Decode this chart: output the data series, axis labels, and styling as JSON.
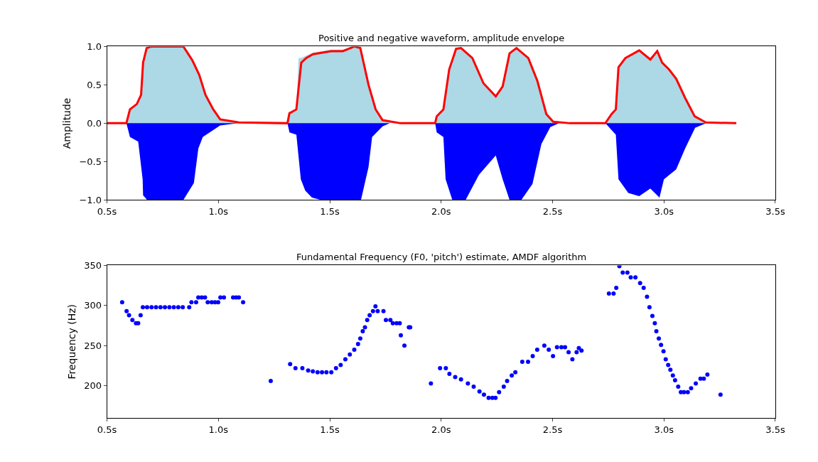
{
  "chart_data": [
    {
      "type": "area",
      "title": "Positive and negative waveform, amplitude envelope",
      "ylabel": "Amplitude",
      "xlim": [
        0.5,
        3.5
      ],
      "ylim": [
        -1,
        1
      ],
      "xticks": [
        {
          "value": 0.5,
          "label": "0.5s"
        },
        {
          "value": 1.0,
          "label": "1.0s"
        },
        {
          "value": 1.5,
          "label": "1.5s"
        },
        {
          "value": 2.0,
          "label": "2.0s"
        },
        {
          "value": 2.5,
          "label": "2.5s"
        },
        {
          "value": 3.0,
          "label": "3.0s"
        },
        {
          "value": 3.5,
          "label": "3.5s"
        }
      ],
      "yticks": [
        {
          "value": -1,
          "label": "−1.0"
        },
        {
          "value": -0.5,
          "label": "−0.5"
        },
        {
          "value": 0,
          "label": "0.0"
        },
        {
          "value": 0.5,
          "label": "0.5"
        },
        {
          "value": 1,
          "label": "1.0"
        }
      ],
      "grid": false,
      "series": [
        {
          "color": "#add8e6",
          "x": [
            0.587,
            0.603,
            0.634,
            0.653,
            0.662,
            0.678,
            0.7,
            0.75,
            0.8,
            0.843,
            0.883,
            0.914,
            0.942,
            0.977,
            1.008,
            1.092,
            1.31,
            1.319,
            1.35,
            1.36,
            1.372,
            1.394,
            1.425,
            1.506,
            1.559,
            1.61,
            1.637,
            1.674,
            1.706,
            1.737,
            1.818,
            1.973,
            1.98,
            2.01,
            2.036,
            2.067,
            2.089,
            2.14,
            2.19,
            2.245,
            2.276,
            2.307,
            2.338,
            2.391,
            2.432,
            2.472,
            2.503,
            2.578,
            2.737,
            2.765,
            2.784,
            2.796,
            2.827,
            2.889,
            2.939,
            2.97,
            2.992,
            3.023,
            3.055,
            3.095,
            3.138,
            3.188
          ],
          "values": [
            0,
            0.18,
            0.25,
            0.37,
            0.79,
            0.98,
            1.0,
            1.0,
            1.0,
            1.0,
            0.82,
            0.63,
            0.37,
            0.18,
            0.05,
            0.01,
            0,
            0.13,
            0.18,
            0.85,
            0.85,
            0.88,
            0.92,
            0.96,
            0.96,
            1.0,
            1.0,
            0.5,
            0.18,
            0.04,
            0,
            0,
            0.09,
            0.18,
            0.7,
            0.97,
            0.98,
            0.85,
            0.52,
            0.35,
            0.48,
            0.91,
            0.98,
            0.85,
            0.55,
            0.12,
            0.02,
            0,
            0,
            0.12,
            0.18,
            0.73,
            0.85,
            0.95,
            0.83,
            0.94,
            0.79,
            0.7,
            0.58,
            0.33,
            0.09,
            0
          ]
        },
        {
          "color": "#0000ff",
          "x": [
            0.587,
            0.603,
            0.64,
            0.66,
            0.662,
            0.68,
            0.843,
            0.89,
            0.91,
            0.93,
            1.008,
            1.09,
            1.31,
            1.319,
            1.35,
            1.37,
            1.39,
            1.42,
            1.46,
            1.64,
            1.674,
            1.69,
            1.737,
            1.77,
            1.973,
            1.98,
            2.01,
            2.02,
            2.05,
            2.11,
            2.17,
            2.245,
            2.276,
            2.307,
            2.36,
            2.41,
            2.45,
            2.49,
            2.53,
            2.737,
            2.765,
            2.784,
            2.796,
            2.84,
            2.889,
            2.939,
            2.98,
            3.0,
            3.055,
            3.095,
            3.14,
            3.19
          ],
          "values": [
            0,
            -0.18,
            -0.24,
            -0.73,
            -0.94,
            -1.0,
            -1.0,
            -0.78,
            -0.33,
            -0.18,
            -0.03,
            0,
            0,
            -0.12,
            -0.15,
            -0.73,
            -0.88,
            -0.97,
            -1.0,
            -1.0,
            -0.57,
            -0.18,
            -0.04,
            0,
            0,
            -0.12,
            -0.18,
            -0.73,
            -1.0,
            -1.0,
            -0.67,
            -0.42,
            -0.73,
            -1.0,
            -1.0,
            -0.79,
            -0.27,
            -0.05,
            0,
            0,
            -0.09,
            -0.15,
            -0.73,
            -0.91,
            -0.95,
            -0.85,
            -0.97,
            -0.73,
            -0.6,
            -0.33,
            -0.06,
            0
          ]
        },
        {
          "type": "line",
          "color": "#ff0000",
          "x": [
            0.5,
            0.587,
            0.603,
            0.634,
            0.653,
            0.662,
            0.678,
            0.7,
            0.75,
            0.8,
            0.843,
            0.883,
            0.914,
            0.942,
            0.977,
            1.008,
            1.092,
            1.31,
            1.319,
            1.35,
            1.372,
            1.394,
            1.425,
            1.506,
            1.559,
            1.61,
            1.637,
            1.674,
            1.706,
            1.737,
            1.818,
            1.973,
            1.98,
            2.01,
            2.036,
            2.067,
            2.089,
            2.14,
            2.19,
            2.245,
            2.276,
            2.307,
            2.338,
            2.391,
            2.432,
            2.472,
            2.503,
            2.578,
            2.737,
            2.765,
            2.784,
            2.796,
            2.827,
            2.889,
            2.939,
            2.97,
            2.992,
            3.023,
            3.055,
            3.095,
            3.138,
            3.188,
            3.325
          ],
          "values": [
            0,
            0,
            0.18,
            0.25,
            0.37,
            0.79,
            0.98,
            1.0,
            1.0,
            1.0,
            1.0,
            0.82,
            0.63,
            0.37,
            0.18,
            0.05,
            0.01,
            0,
            0.13,
            0.18,
            0.79,
            0.85,
            0.9,
            0.94,
            0.94,
            1.0,
            0.98,
            0.5,
            0.18,
            0.04,
            0,
            0,
            0.09,
            0.18,
            0.7,
            0.97,
            0.98,
            0.85,
            0.52,
            0.35,
            0.48,
            0.91,
            0.98,
            0.85,
            0.55,
            0.12,
            0.02,
            0,
            0,
            0.12,
            0.18,
            0.73,
            0.85,
            0.95,
            0.83,
            0.94,
            0.79,
            0.7,
            0.58,
            0.33,
            0.09,
            0.01,
            0
          ]
        }
      ]
    },
    {
      "type": "scatter",
      "title": "Fundamental Frequency (F0, 'pitch') estimate, AMDF algorithm",
      "ylabel": "Frequency (Hz)",
      "xlim": [
        0.5,
        3.5
      ],
      "ylim": [
        160,
        350
      ],
      "xticks": [
        {
          "value": 0.5,
          "label": "0.5s"
        },
        {
          "value": 1.0,
          "label": "1.0s"
        },
        {
          "value": 1.5,
          "label": "1.5s"
        },
        {
          "value": 2.0,
          "label": "2.0s"
        },
        {
          "value": 2.5,
          "label": "2.5s"
        },
        {
          "value": 3.0,
          "label": "3.0s"
        },
        {
          "value": 3.5,
          "label": "3.5s"
        }
      ],
      "yticks": [
        200,
        250,
        300,
        350
      ],
      "grid": false,
      "marker": "circle",
      "series": [
        {
          "color": "#0000ff",
          "x": [
            0.568,
            0.588,
            0.599,
            0.614,
            0.63,
            0.64,
            0.651,
            0.661,
            0.68,
            0.7,
            0.72,
            0.74,
            0.76,
            0.78,
            0.8,
            0.82,
            0.84,
            0.869,
            0.879,
            0.9,
            0.91,
            0.925,
            0.94,
            0.952,
            0.97,
            0.985,
            0.999,
            1.009,
            1.025,
            1.066,
            1.08,
            1.092,
            1.111,
            1.235,
            1.322,
            1.346,
            1.377,
            1.403,
            1.424,
            1.445,
            1.465,
            1.485,
            1.507,
            1.528,
            1.549,
            1.57,
            1.59,
            1.61,
            1.627,
            1.637,
            1.648,
            1.658,
            1.668,
            1.679,
            1.694,
            1.705,
            1.715,
            1.741,
            1.752,
            1.772,
            1.783,
            1.8,
            1.814,
            1.819,
            1.835,
            1.855,
            1.861,
            1.954,
            1.995,
            2.021,
            2.037,
            2.063,
            2.089,
            2.12,
            2.146,
            2.172,
            2.192,
            2.213,
            2.23,
            2.244,
            2.26,
            2.281,
            2.296,
            2.317,
            2.333,
            2.364,
            2.39,
            2.411,
            2.431,
            2.463,
            2.483,
            2.502,
            2.52,
            2.54,
            2.556,
            2.572,
            2.589,
            2.608,
            2.618,
            2.63,
            2.753,
            2.774,
            2.786,
            2.8,
            2.815,
            2.836,
            2.851,
            2.872,
            2.893,
            2.909,
            2.924,
            2.935,
            2.948,
            2.959,
            2.966,
            2.977,
            2.987,
            2.998,
            3.008,
            3.019,
            3.029,
            3.04,
            3.05,
            3.064,
            3.076,
            3.09,
            3.107,
            3.122,
            3.143,
            3.164,
            3.179,
            3.195,
            3.254
          ],
          "values": [
            304,
            293,
            288,
            282,
            278,
            278,
            288,
            298,
            298,
            298,
            298,
            298,
            298,
            298,
            298,
            298,
            298,
            298,
            304,
            304,
            310,
            310,
            310,
            304,
            304,
            304,
            304,
            310,
            310,
            310,
            310,
            310,
            304,
            206,
            227,
            222,
            222,
            219,
            218,
            217,
            217,
            217,
            217,
            222,
            226,
            233,
            239,
            245,
            252,
            259,
            268,
            273,
            282,
            288,
            293,
            299,
            293,
            293,
            282,
            282,
            278,
            278,
            278,
            263,
            250,
            273,
            273,
            203,
            222,
            222,
            215,
            211,
            208,
            203,
            199,
            193,
            189,
            185,
            185,
            185,
            192,
            199,
            206,
            213,
            217,
            230,
            230,
            237,
            245,
            250,
            245,
            237,
            248,
            248,
            248,
            242,
            233,
            242,
            247,
            244,
            315,
            315,
            322,
            349,
            341,
            341,
            335,
            335,
            328,
            322,
            311,
            298,
            287,
            278,
            268,
            259,
            251,
            243,
            233,
            226,
            220,
            213,
            207,
            199,
            192,
            192,
            192,
            197,
            203,
            209,
            209,
            214,
            189
          ]
        }
      ]
    }
  ]
}
